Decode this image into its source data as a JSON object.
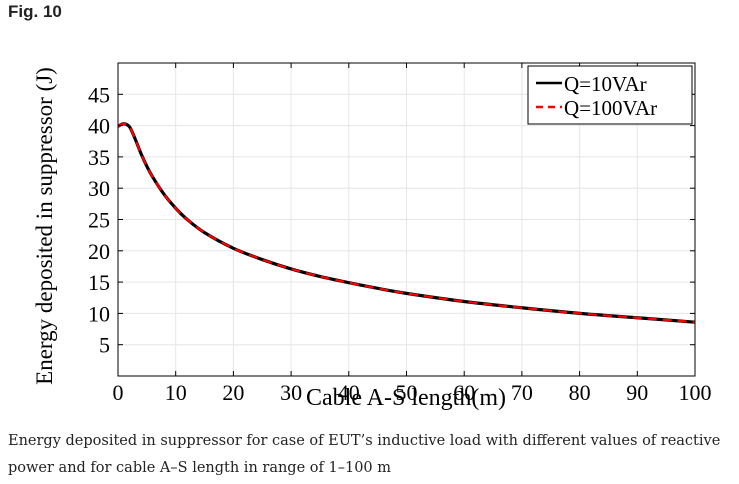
{
  "figure": {
    "label": "Fig. 10",
    "caption": "Energy deposited in suppressor for case of EUT’s inductive load with different values of reactive power and for cable A–S length in range of 1–100 m"
  },
  "chart_data": {
    "type": "line",
    "xlabel": "Cable A-S length(m)",
    "ylabel": "Energy deposited in suppressor (J)",
    "xlim": [
      0,
      100
    ],
    "ylim": [
      0,
      50
    ],
    "xticks": [
      0,
      10,
      20,
      30,
      40,
      50,
      60,
      70,
      80,
      90,
      100
    ],
    "yticks": [
      5,
      10,
      15,
      20,
      25,
      30,
      35,
      40,
      45
    ],
    "grid": true,
    "legend_position": "top-right",
    "series": [
      {
        "name": "Q=10VAr",
        "color": "#000000",
        "style": "solid",
        "x": [
          0,
          1,
          2,
          3,
          4,
          5,
          6,
          8,
          10,
          12,
          15,
          20,
          25,
          30,
          35,
          40,
          45,
          50,
          60,
          70,
          80,
          90,
          100
        ],
        "y": [
          39.9,
          40.3,
          39.8,
          37.8,
          35.5,
          33.5,
          31.8,
          29.0,
          26.8,
          25.0,
          22.9,
          20.4,
          18.6,
          17.1,
          15.9,
          14.9,
          14.0,
          13.2,
          11.9,
          10.9,
          10.0,
          9.3,
          8.6
        ]
      },
      {
        "name": "Q=100VAr",
        "color": "#ff0000",
        "style": "dashed",
        "x": [
          0,
          1,
          2,
          3,
          4,
          5,
          6,
          8,
          10,
          12,
          15,
          20,
          25,
          30,
          35,
          40,
          45,
          50,
          60,
          70,
          80,
          90,
          100
        ],
        "y": [
          39.9,
          40.3,
          39.8,
          37.8,
          35.5,
          33.5,
          31.8,
          29.0,
          26.8,
          25.0,
          22.9,
          20.4,
          18.6,
          17.1,
          15.9,
          14.9,
          14.0,
          13.2,
          11.9,
          10.9,
          10.0,
          9.3,
          8.6
        ]
      }
    ]
  }
}
